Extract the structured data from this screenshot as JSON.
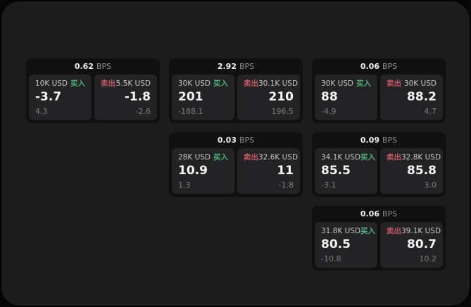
{
  "page": {
    "bps_unit": "BPS",
    "buy_label": "买入",
    "sell_label": "卖出"
  },
  "colors": {
    "outer_bg": "#050505",
    "surface_bg": "#1c1c1d",
    "card_bg": "#101010",
    "panel_bg": "#232325",
    "buy_green": "#4db378",
    "sell_red": "#c25762",
    "text_primary": "#f5f5f5",
    "text_muted": "#8b8b8b"
  },
  "cards": [
    {
      "bps": "0.62",
      "col": 1,
      "row": 1,
      "buy": {
        "amount": "10K USD",
        "value": "-3.7",
        "change": "4.3"
      },
      "sell": {
        "amount": "5.5K USD",
        "value": "-1.8",
        "change": "-2.6"
      }
    },
    {
      "bps": "2.92",
      "col": 2,
      "row": 1,
      "buy": {
        "amount": "30K USD",
        "value": "201",
        "change": "-188.1"
      },
      "sell": {
        "amount": "30.1K USD",
        "value": "210",
        "change": "196.5"
      }
    },
    {
      "bps": "0.06",
      "col": 3,
      "row": 1,
      "buy": {
        "amount": "30K USD",
        "value": "88",
        "change": "-4.9"
      },
      "sell": {
        "amount": "30K USD",
        "value": "88.2",
        "change": "4.7"
      }
    },
    {
      "bps": "0.03",
      "col": 2,
      "row": 2,
      "buy": {
        "amount": "28K USD",
        "value": "10.9",
        "change": "1.3"
      },
      "sell": {
        "amount": "32.6K USD",
        "value": "11",
        "change": "-1.8"
      }
    },
    {
      "bps": "0.09",
      "col": 3,
      "row": 2,
      "buy": {
        "amount": "34.1K USD",
        "value": "85.5",
        "change": "-3.1"
      },
      "sell": {
        "amount": "32.8K USD",
        "value": "85.8",
        "change": "3.0"
      }
    },
    {
      "bps": "0.06",
      "col": 3,
      "row": 3,
      "buy": {
        "amount": "31.8K USD",
        "value": "80.5",
        "change": "-10.8"
      },
      "sell": {
        "amount": "39.1K USD",
        "value": "80.7",
        "change": "10.2"
      }
    }
  ]
}
